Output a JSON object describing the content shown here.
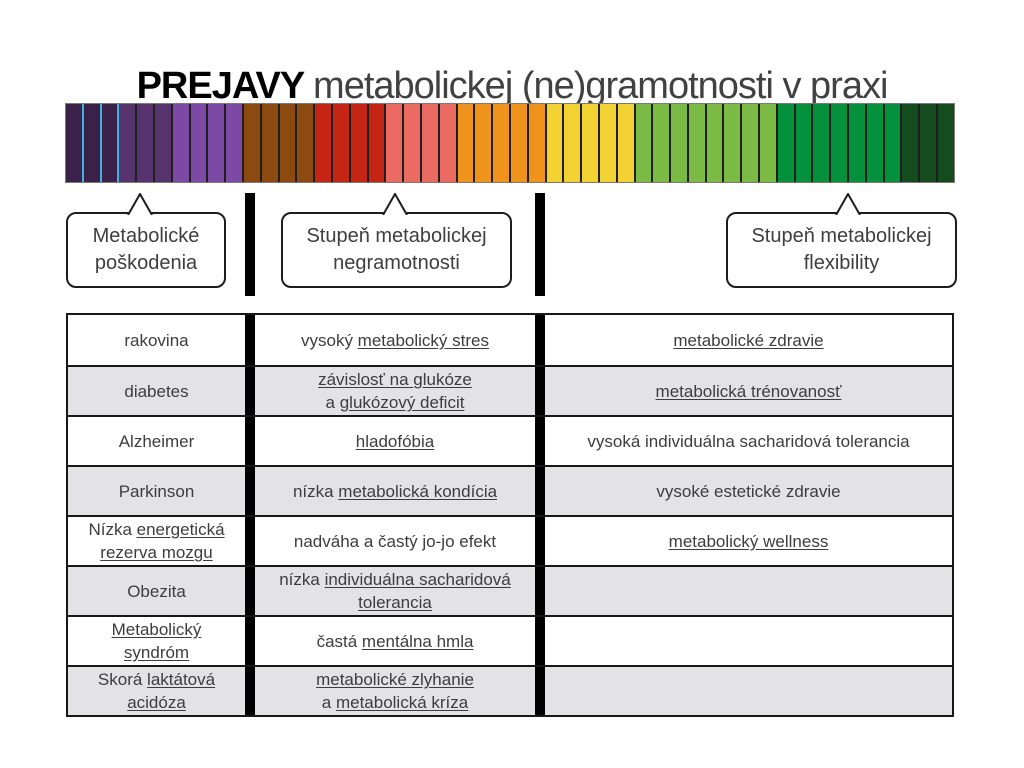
{
  "title": {
    "emphasis": "PREJAVY",
    "rest": "metabolickej (ne)gramotnosti v praxi"
  },
  "colorbar": {
    "outline_color": "#7d7a76",
    "divider_color": "#1f1f1f",
    "special_divider": {
      "color": "#41b1e1",
      "before_segments": [
        1,
        2,
        3
      ]
    },
    "groups": [
      {
        "name": "darkest-purple",
        "color": "#39214a",
        "count": 3
      },
      {
        "name": "dark-purple",
        "color": "#57336e",
        "count": 3
      },
      {
        "name": "purple",
        "color": "#7c4aa4",
        "count": 4
      },
      {
        "name": "brown",
        "color": "#8c4a10",
        "count": 4
      },
      {
        "name": "red",
        "color": "#c52514",
        "count": 4
      },
      {
        "name": "salmon",
        "color": "#eb6a61",
        "count": 4
      },
      {
        "name": "orange",
        "color": "#f0931d",
        "count": 5
      },
      {
        "name": "yellow",
        "color": "#f2d233",
        "count": 5
      },
      {
        "name": "light-green",
        "color": "#7aba45",
        "count": 8
      },
      {
        "name": "green",
        "color": "#05913c",
        "count": 7
      },
      {
        "name": "dark-green",
        "color": "#154c1d",
        "count": 3
      }
    ]
  },
  "callouts": [
    {
      "label": "Metabolické poškodenia"
    },
    {
      "label": "Stupeň metabolickej negramotnosti"
    },
    {
      "label": "Stupeň metabolickej flexibility"
    }
  ],
  "table": {
    "row_colors": [
      "#ffffff",
      "#e3e3e6"
    ],
    "rows": [
      {
        "cells": [
          {
            "lines": [
              [
                {
                  "t": "rakovina",
                  "u": false
                }
              ]
            ]
          },
          {
            "lines": [
              [
                {
                  "t": "vysoký ",
                  "u": false
                },
                {
                  "t": "metabolický stres",
                  "u": true
                }
              ]
            ]
          },
          {
            "lines": [
              [
                {
                  "t": "metabolické zdravie",
                  "u": true
                }
              ]
            ]
          }
        ]
      },
      {
        "cells": [
          {
            "lines": [
              [
                {
                  "t": "diabetes",
                  "u": false
                }
              ]
            ]
          },
          {
            "lines": [
              [
                {
                  "t": "závislosť na glukóze",
                  "u": true
                }
              ],
              [
                {
                  "t": "a ",
                  "u": false
                },
                {
                  "t": "glukózový deficit",
                  "u": true
                }
              ]
            ]
          },
          {
            "lines": [
              [
                {
                  "t": "metabolická trénovanosť",
                  "u": true
                }
              ]
            ]
          }
        ]
      },
      {
        "cells": [
          {
            "lines": [
              [
                {
                  "t": "Alzheimer",
                  "u": false
                }
              ]
            ]
          },
          {
            "lines": [
              [
                {
                  "t": "hladofóbia",
                  "u": true
                }
              ]
            ]
          },
          {
            "lines": [
              [
                {
                  "t": "vysoká individuálna sacharidová tolerancia",
                  "u": false
                }
              ]
            ]
          }
        ]
      },
      {
        "cells": [
          {
            "lines": [
              [
                {
                  "t": "Parkinson",
                  "u": false
                }
              ]
            ]
          },
          {
            "lines": [
              [
                {
                  "t": "nízka ",
                  "u": false
                },
                {
                  "t": "metabolická kondícia",
                  "u": true
                }
              ]
            ]
          },
          {
            "lines": [
              [
                {
                  "t": "vysoké estetické zdravie",
                  "u": false
                }
              ]
            ]
          }
        ]
      },
      {
        "cells": [
          {
            "lines": [
              [
                {
                  "t": "Nízka ",
                  "u": false
                },
                {
                  "t": "energetická",
                  "u": true
                }
              ],
              [
                {
                  "t": "rezerva mozgu",
                  "u": true
                }
              ]
            ]
          },
          {
            "lines": [
              [
                {
                  "t": "nadváha a častý jo-jo efekt",
                  "u": false
                }
              ]
            ]
          },
          {
            "lines": [
              [
                {
                  "t": "metabolický wellness",
                  "u": true
                }
              ]
            ]
          }
        ]
      },
      {
        "cells": [
          {
            "lines": [
              [
                {
                  "t": "Obezita",
                  "u": false
                }
              ]
            ]
          },
          {
            "lines": [
              [
                {
                  "t": "nízka ",
                  "u": false
                },
                {
                  "t": "individuálna sacharidová",
                  "u": true
                }
              ],
              [
                {
                  "t": "tolerancia",
                  "u": true
                }
              ]
            ]
          },
          {
            "lines": []
          }
        ]
      },
      {
        "cells": [
          {
            "lines": [
              [
                {
                  "t": "Metabolický",
                  "u": true
                }
              ],
              [
                {
                  "t": "syndróm",
                  "u": true
                }
              ]
            ]
          },
          {
            "lines": [
              [
                {
                  "t": "častá ",
                  "u": false
                },
                {
                  "t": "mentálna hmla",
                  "u": true
                }
              ]
            ]
          },
          {
            "lines": []
          }
        ]
      },
      {
        "cells": [
          {
            "lines": [
              [
                {
                  "t": "Skorá ",
                  "u": false
                },
                {
                  "t": "laktátová",
                  "u": true
                }
              ],
              [
                {
                  "t": "acidóza",
                  "u": true
                }
              ]
            ]
          },
          {
            "lines": [
              [
                {
                  "t": "metabolické zlyhanie",
                  "u": true
                }
              ],
              [
                {
                  "t": "a ",
                  "u": false
                },
                {
                  "t": "metabolická kríza",
                  "u": true
                }
              ]
            ]
          },
          {
            "lines": []
          }
        ]
      }
    ]
  }
}
